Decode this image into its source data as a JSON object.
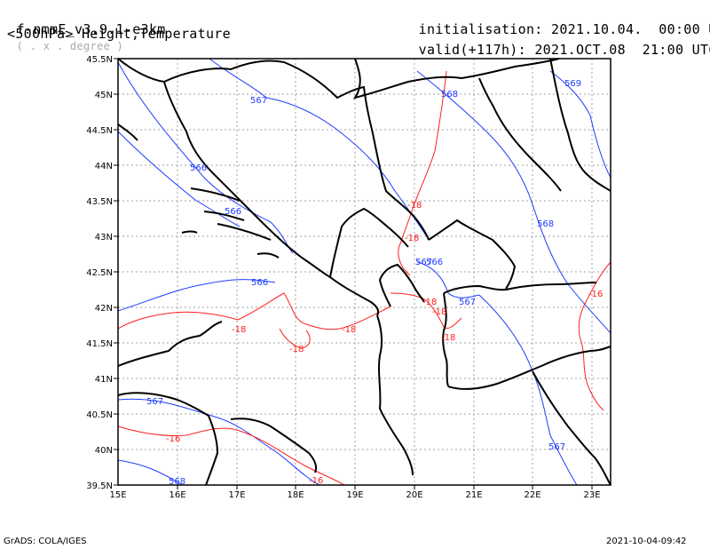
{
  "header": {
    "model": "f-nmmE_v3.9.1-e3km",
    "projection": "( . x . degree )",
    "level_fields": "<500hPa> Height,Temperature",
    "init_label": "initialisation:",
    "init_value": "2021.10.04.  00:00 UTC",
    "valid_label": "valid(+117h):",
    "valid_value": "2021.OCT.08  21:00 UTC"
  },
  "footer": {
    "left": "GrADS: COLA/IGES",
    "right": "2021-10-04-09:42"
  },
  "map": {
    "lon_labels": [
      "15E",
      "16E",
      "17E",
      "18E",
      "19E",
      "20E",
      "21E",
      "22E",
      "23E"
    ],
    "lat_labels": [
      "45.5N",
      "45N",
      "44.5N",
      "44N",
      "43.5N",
      "43N",
      "42.5N",
      "42N",
      "41.5N",
      "41N",
      "40.5N",
      "40N",
      "39.5N"
    ],
    "colors": {
      "height": "#1e3cff",
      "temperature": "#ff1e1e",
      "border": "#000000",
      "grid": "#a0a0a0"
    },
    "height_contour_labels": [
      "567",
      "568",
      "569",
      "566",
      "568",
      "566",
      "567",
      "566",
      "567",
      "567",
      "568",
      "567",
      "566"
    ],
    "temperature_contour_labels": [
      "-18",
      "-18",
      "-18",
      "-18",
      "-18",
      "-18",
      "-18",
      "-18",
      "-16",
      "-16",
      "-16"
    ]
  }
}
